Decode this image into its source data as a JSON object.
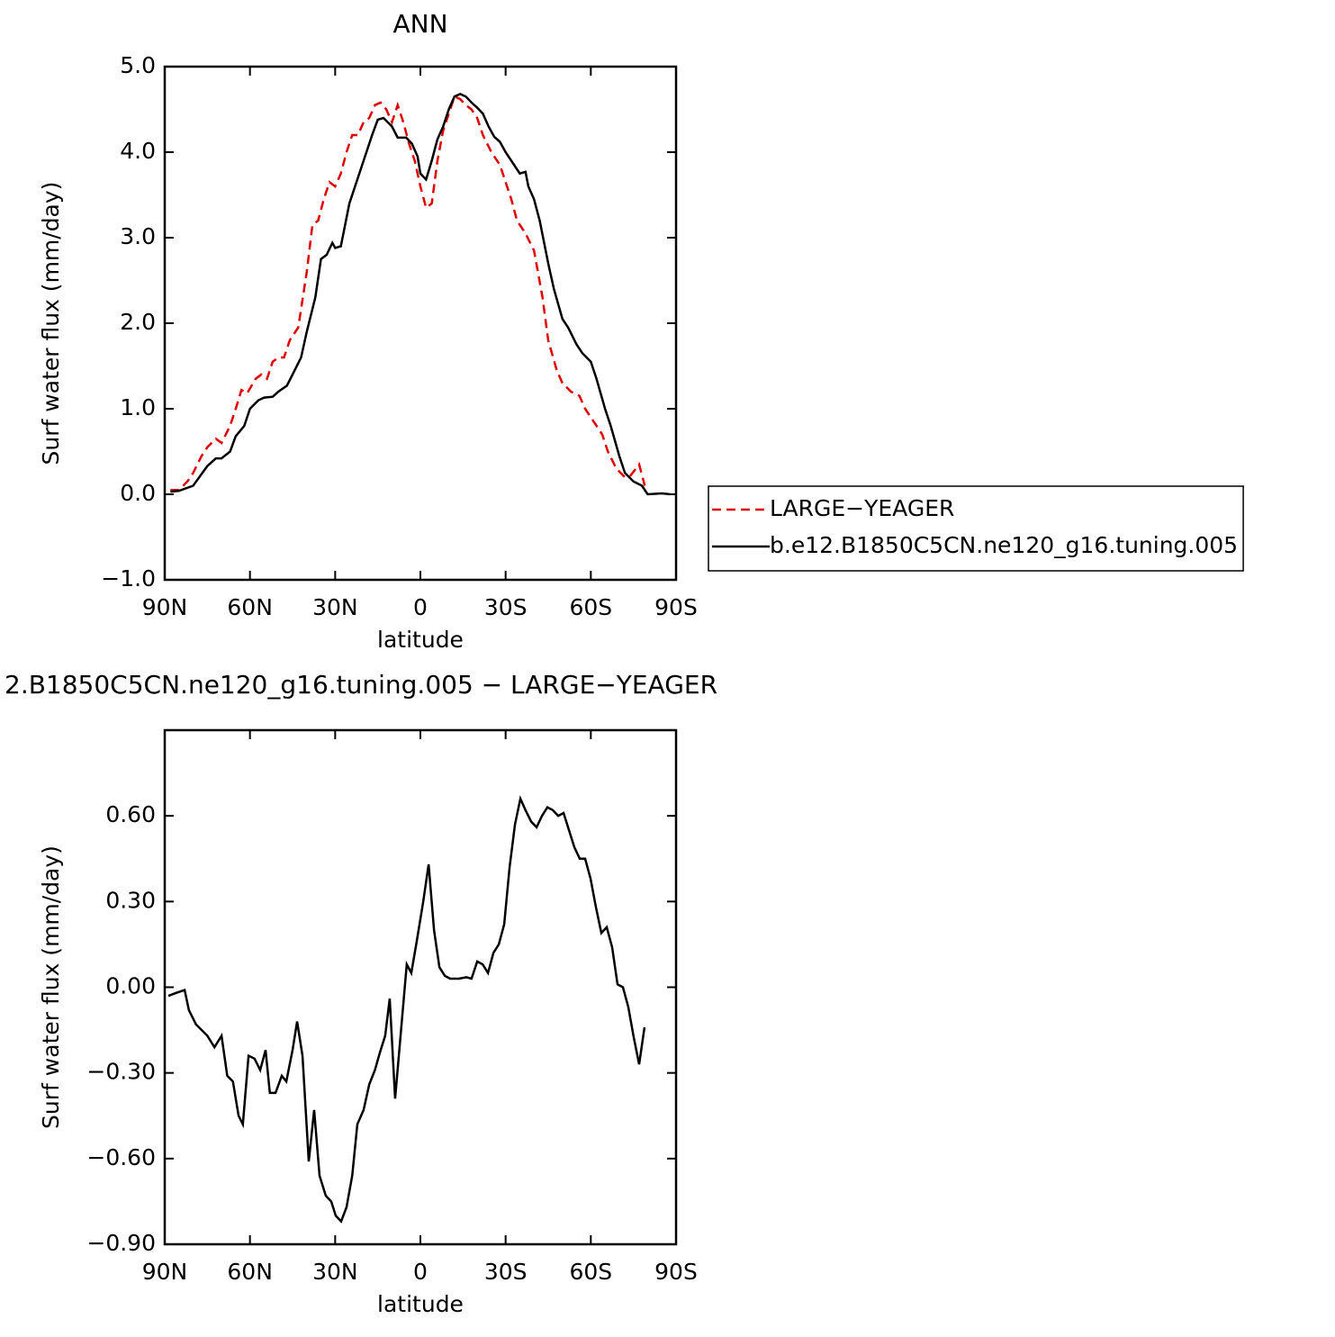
{
  "chart_data": [
    {
      "type": "line",
      "title": "ANN",
      "xlabel": "latitude",
      "ylabel": "Surf water flux (mm/day)",
      "xlim": [
        90,
        -90
      ],
      "xticks": [
        {
          "value": 90,
          "label": "90N"
        },
        {
          "value": 60,
          "label": "60N"
        },
        {
          "value": 30,
          "label": "30N"
        },
        0,
        {
          "value": -30,
          "label": "30S"
        },
        {
          "value": -60,
          "label": "60S"
        },
        {
          "value": -90,
          "label": "90S"
        }
      ],
      "ylim": [
        -1,
        5
      ],
      "yticks": [
        {
          "value": -1,
          "label": "−1.0"
        },
        {
          "value": 0,
          "label": "0.0"
        },
        {
          "value": 1,
          "label": "1.0"
        },
        {
          "value": 2,
          "label": "2.0"
        },
        {
          "value": 3,
          "label": "3.0"
        },
        {
          "value": 4,
          "label": "4.0"
        },
        {
          "value": 5,
          "label": "5.0"
        }
      ],
      "legend": "right",
      "series": [
        {
          "name": "LARGE−YEAGER",
          "color": "#e00000",
          "dash": "dashed",
          "x": [
            88,
            85,
            82,
            80,
            77,
            75,
            72,
            70,
            67,
            65,
            63,
            61,
            58,
            56,
            54,
            52,
            50,
            48,
            46,
            43,
            40,
            38,
            36,
            34,
            32,
            30,
            28,
            26,
            24,
            22,
            20,
            18,
            16,
            14,
            12,
            10,
            8,
            6,
            4,
            2,
            0,
            -2,
            -4,
            -6,
            -8,
            -10,
            -12,
            -14,
            -16,
            -18,
            -20,
            -22,
            -25,
            -28,
            -30,
            -32,
            -34,
            -37,
            -40,
            -43,
            -45,
            -48,
            -50,
            -53,
            -56,
            -58,
            -61,
            -64,
            -66,
            -69,
            -72,
            -74,
            -77,
            -79
          ],
          "values": [
            0.05,
            0.05,
            0.15,
            0.25,
            0.45,
            0.55,
            0.65,
            0.6,
            0.8,
            1.0,
            1.22,
            1.18,
            1.35,
            1.4,
            1.35,
            1.55,
            1.6,
            1.6,
            1.8,
            1.95,
            2.6,
            3.15,
            3.2,
            3.45,
            3.65,
            3.6,
            3.75,
            4.0,
            4.2,
            4.2,
            4.35,
            4.4,
            4.55,
            4.58,
            4.5,
            4.35,
            4.55,
            4.35,
            4.1,
            3.9,
            3.6,
            3.35,
            3.4,
            3.9,
            4.25,
            4.45,
            4.65,
            4.62,
            4.55,
            4.5,
            4.4,
            4.2,
            4.0,
            3.85,
            3.65,
            3.45,
            3.2,
            3.05,
            2.85,
            2.3,
            1.8,
            1.45,
            1.3,
            1.2,
            1.15,
            1.0,
            0.85,
            0.7,
            0.5,
            0.3,
            0.2,
            0.22,
            0.35,
            0.1
          ]
        },
        {
          "name": "b.e12.B1850C5CN.ne120_g16.tuning.005",
          "color": "#000000",
          "dash": "solid",
          "x": [
            88,
            85,
            80,
            75,
            72,
            70,
            67,
            65,
            62,
            60,
            57,
            55,
            52,
            50,
            47,
            45,
            42,
            40,
            37,
            35,
            33,
            31,
            30,
            28,
            25,
            22,
            20,
            17,
            15,
            13,
            10,
            8,
            5,
            3,
            1,
            0,
            -2,
            -4,
            -6,
            -8,
            -10,
            -12,
            -14,
            -16,
            -18,
            -20,
            -22,
            -24,
            -26,
            -28,
            -30,
            -33,
            -35,
            -37,
            -38,
            -40,
            -42,
            -45,
            -47,
            -50,
            -52,
            -55,
            -57,
            -60,
            -62,
            -65,
            -67,
            -70,
            -72,
            -75,
            -78,
            -80,
            -85,
            -88
          ],
          "values": [
            0.03,
            0.04,
            0.1,
            0.33,
            0.42,
            0.42,
            0.5,
            0.68,
            0.8,
            1.0,
            1.1,
            1.13,
            1.14,
            1.2,
            1.27,
            1.4,
            1.6,
            1.9,
            2.3,
            2.75,
            2.8,
            2.94,
            2.88,
            2.9,
            3.4,
            3.7,
            3.9,
            4.2,
            4.38,
            4.4,
            4.3,
            4.17,
            4.17,
            4.1,
            3.95,
            3.75,
            3.68,
            3.9,
            4.15,
            4.3,
            4.5,
            4.65,
            4.68,
            4.65,
            4.58,
            4.52,
            4.45,
            4.3,
            4.18,
            4.12,
            4.0,
            3.85,
            3.75,
            3.77,
            3.6,
            3.45,
            3.2,
            2.7,
            2.4,
            2.05,
            1.95,
            1.75,
            1.65,
            1.55,
            1.35,
            1.0,
            0.8,
            0.45,
            0.25,
            0.15,
            0.1,
            0.0,
            0.01,
            0.0
          ]
        }
      ]
    },
    {
      "type": "line",
      "title": "2.B1850C5CN.ne120_g16.tuning.005 − LARGE−YEAGER",
      "xlabel": "latitude",
      "ylabel": "Surf water flux (mm/day)",
      "xlim": [
        90,
        -90
      ],
      "xticks": [
        {
          "value": 90,
          "label": "90N"
        },
        {
          "value": 60,
          "label": "60N"
        },
        {
          "value": 30,
          "label": "30N"
        },
        0,
        {
          "value": -30,
          "label": "30S"
        },
        {
          "value": -60,
          "label": "60S"
        },
        {
          "value": -90,
          "label": "90S"
        }
      ],
      "ylim": [
        -0.9,
        0.9
      ],
      "yticks": [
        {
          "value": -0.9,
          "label": "−0.90"
        },
        {
          "value": -0.6,
          "label": "−0.60"
        },
        {
          "value": -0.3,
          "label": "−0.30"
        },
        {
          "value": 0,
          "label": "0.00"
        },
        {
          "value": 0.3,
          "label": "0.30"
        },
        {
          "value": 0.6,
          "label": "0.60"
        }
      ],
      "series": [
        {
          "color": "#000000",
          "dash": "solid",
          "x": [
            88.7,
            86,
            83,
            81.5,
            79,
            75,
            72.5,
            70,
            68,
            66,
            64,
            62.5,
            60.5,
            58.4,
            56.4,
            54.5,
            53,
            51,
            48.8,
            47.2,
            45,
            43.4,
            41.5,
            39.3,
            37.4,
            35.5,
            33.3,
            31.4,
            29.8,
            27.9,
            26,
            24,
            22.2,
            20,
            18,
            16,
            14.3,
            12.4,
            10.8,
            8.9,
            4.8,
            3.2,
            1.3,
            -1,
            -2.9,
            -4.8,
            -6.7,
            -8.6,
            -10.5,
            -13.6,
            -16.2,
            -18,
            -20,
            -21.9,
            -23.8,
            -25.7,
            -27.6,
            -29.5,
            -31.4,
            -33.3,
            -35.2,
            -37,
            -39,
            -40.9,
            -42.8,
            -44.7,
            -46.6,
            -48.5,
            -50.4,
            -52.3,
            -54.2,
            -56.1,
            -58,
            -59.9,
            -61.8,
            -63.7,
            -65.6,
            -67.5,
            -69.4,
            -71.3,
            -73.2,
            -75,
            -77,
            -78.9
          ],
          "values": [
            -0.03,
            -0.02,
            -0.01,
            -0.08,
            -0.13,
            -0.17,
            -0.21,
            -0.17,
            -0.31,
            -0.33,
            -0.45,
            -0.48,
            -0.24,
            -0.25,
            -0.29,
            -0.22,
            -0.37,
            -0.37,
            -0.31,
            -0.33,
            -0.22,
            -0.12,
            -0.24,
            -0.61,
            -0.43,
            -0.66,
            -0.73,
            -0.75,
            -0.8,
            -0.82,
            -0.77,
            -0.66,
            -0.48,
            -0.43,
            -0.34,
            -0.29,
            -0.23,
            -0.17,
            -0.04,
            -0.39,
            0.08,
            0.05,
            0.16,
            0.3,
            0.43,
            0.2,
            0.07,
            0.04,
            0.03,
            0.03,
            0.035,
            0.03,
            0.09,
            0.08,
            0.05,
            0.12,
            0.15,
            0.22,
            0.42,
            0.57,
            0.66,
            0.62,
            0.58,
            0.56,
            0.6,
            0.63,
            0.62,
            0.6,
            0.61,
            0.55,
            0.49,
            0.45,
            0.45,
            0.38,
            0.28,
            0.19,
            0.21,
            0.14,
            0.01,
            0.0,
            -0.07,
            -0.17,
            -0.27,
            -0.14
          ]
        }
      ]
    }
  ]
}
